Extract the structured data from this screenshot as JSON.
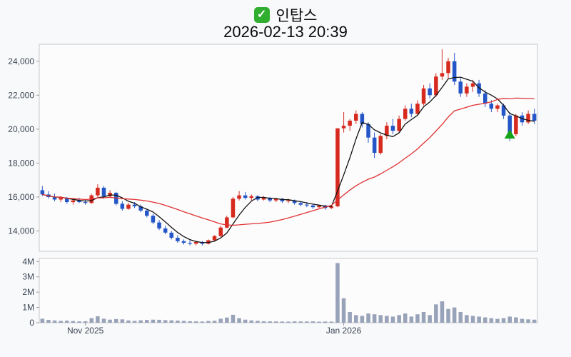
{
  "header": {
    "title": "인탑스",
    "datetime": "2026-02-13 20:39",
    "check_glyph": "✓"
  },
  "chart_data": {
    "type": "candlestick",
    "title": "인탑스",
    "subtitle": "2026-02-13 20:39",
    "price_axis": {
      "min": 12800,
      "max": 25000,
      "ticks": [
        {
          "value": 14000,
          "label": "14,000"
        },
        {
          "value": 16000,
          "label": "16,000"
        },
        {
          "value": 18000,
          "label": "18,000"
        },
        {
          "value": 20000,
          "label": "20,000"
        },
        {
          "value": 22000,
          "label": "22,000"
        },
        {
          "value": 24000,
          "label": "24,000"
        }
      ]
    },
    "volume_axis": {
      "max": 4200000,
      "ticks": [
        {
          "value": 0,
          "label": "0"
        },
        {
          "value": 1000000,
          "label": "1M"
        },
        {
          "value": 2000000,
          "label": "2M"
        },
        {
          "value": 3000000,
          "label": "3M"
        },
        {
          "value": 4000000,
          "label": "4M"
        }
      ]
    },
    "x_ticks": [
      {
        "index": 7,
        "label": "Nov 2025"
      },
      {
        "index": 49,
        "label": "Jan 2026"
      }
    ],
    "colors": {
      "up": "#d62a1f",
      "down": "#2456c8",
      "volume": "#98a2b8",
      "ma_short": "#111111",
      "ma_long": "#e03131",
      "marker": "#17a317",
      "axis_text": "#3c4656",
      "panel_border": "#c9c9c9",
      "background": "#f8f9fa"
    },
    "overlays": [
      {
        "name": "ma-short",
        "period": 5
      },
      {
        "name": "ma-long",
        "period": 20
      }
    ],
    "marker": {
      "index": 76,
      "price": 19650,
      "shape": "triangle-up"
    },
    "candles": [
      [
        16400,
        16650,
        16050,
        16150,
        260000
      ],
      [
        16150,
        16350,
        15900,
        16000,
        180000
      ],
      [
        16000,
        16200,
        15750,
        15850,
        150000
      ],
      [
        15850,
        16050,
        15700,
        15950,
        120000
      ],
      [
        15950,
        16000,
        15600,
        15700,
        140000
      ],
      [
        15700,
        15900,
        15550,
        15800,
        110000
      ],
      [
        15800,
        15950,
        15650,
        15700,
        90000
      ],
      [
        15700,
        15850,
        15550,
        15650,
        100000
      ],
      [
        15650,
        16200,
        15600,
        16100,
        300000
      ],
      [
        16100,
        16750,
        16000,
        16550,
        420000
      ],
      [
        16550,
        16650,
        15900,
        16050,
        260000
      ],
      [
        16050,
        16400,
        15950,
        16250,
        200000
      ],
      [
        16250,
        16300,
        15500,
        15600,
        240000
      ],
      [
        15600,
        15750,
        15200,
        15300,
        220000
      ],
      [
        15300,
        15650,
        15250,
        15550,
        150000
      ],
      [
        15550,
        15700,
        15350,
        15450,
        120000
      ],
      [
        15450,
        15550,
        15100,
        15200,
        160000
      ],
      [
        15200,
        15300,
        14800,
        14900,
        180000
      ],
      [
        14900,
        15000,
        14400,
        14500,
        200000
      ],
      [
        14500,
        14650,
        14050,
        14150,
        190000
      ],
      [
        14150,
        14300,
        13800,
        13900,
        170000
      ],
      [
        13900,
        14000,
        13500,
        13600,
        160000
      ],
      [
        13600,
        13750,
        13300,
        13400,
        140000
      ],
      [
        13400,
        13500,
        13200,
        13300,
        120000
      ],
      [
        13300,
        13450,
        13150,
        13250,
        100000
      ],
      [
        13250,
        13400,
        13150,
        13350,
        90000
      ],
      [
        13350,
        13400,
        13150,
        13250,
        80000
      ],
      [
        13250,
        13500,
        13200,
        13450,
        110000
      ],
      [
        13450,
        13750,
        13400,
        13700,
        130000
      ],
      [
        13700,
        14300,
        13650,
        14200,
        260000
      ],
      [
        14200,
        14900,
        14150,
        14800,
        340000
      ],
      [
        14800,
        16000,
        14750,
        15900,
        520000
      ],
      [
        15900,
        16350,
        15800,
        16100,
        300000
      ],
      [
        16100,
        16300,
        15850,
        15950,
        200000
      ],
      [
        15950,
        16150,
        15800,
        16050,
        150000
      ],
      [
        16050,
        16100,
        15750,
        15850,
        120000
      ],
      [
        15850,
        16050,
        15800,
        15950,
        100000
      ],
      [
        15950,
        16000,
        15700,
        15800,
        90000
      ],
      [
        15800,
        15950,
        15700,
        15900,
        85000
      ],
      [
        15900,
        15950,
        15650,
        15750,
        80000
      ],
      [
        15750,
        15900,
        15650,
        15800,
        75000
      ],
      [
        15800,
        15850,
        15550,
        15650,
        90000
      ],
      [
        15650,
        15750,
        15450,
        15550,
        85000
      ],
      [
        15550,
        15700,
        15400,
        15500,
        80000
      ],
      [
        15500,
        15600,
        15300,
        15400,
        90000
      ],
      [
        15400,
        15550,
        15350,
        15500,
        70000
      ],
      [
        15500,
        15550,
        15250,
        15350,
        80000
      ],
      [
        15350,
        15500,
        15300,
        15450,
        75000
      ],
      [
        15450,
        20050,
        15400,
        20050,
        3900000
      ],
      [
        20050,
        21000,
        19800,
        20200,
        1600000
      ],
      [
        20200,
        20600,
        19900,
        20500,
        700000
      ],
      [
        20500,
        21100,
        20300,
        20900,
        500000
      ],
      [
        20900,
        21000,
        20100,
        20300,
        450000
      ],
      [
        20300,
        20400,
        19200,
        19500,
        600000
      ],
      [
        19500,
        19800,
        18300,
        18600,
        550000
      ],
      [
        18600,
        19700,
        18500,
        19600,
        500000
      ],
      [
        19600,
        20400,
        19400,
        20200,
        450000
      ],
      [
        20200,
        20600,
        19700,
        19900,
        400000
      ],
      [
        19900,
        20800,
        19800,
        20600,
        500000
      ],
      [
        20600,
        21400,
        20500,
        21200,
        600000
      ],
      [
        21200,
        21500,
        20700,
        20900,
        400000
      ],
      [
        20900,
        21700,
        20800,
        21500,
        550000
      ],
      [
        21500,
        22600,
        21400,
        22400,
        700000
      ],
      [
        22400,
        22700,
        21800,
        22000,
        500000
      ],
      [
        22000,
        23300,
        21900,
        23100,
        1200000
      ],
      [
        23100,
        24700,
        22900,
        23300,
        1400000
      ],
      [
        23300,
        24200,
        23000,
        24000,
        900000
      ],
      [
        24000,
        24500,
        22600,
        22800,
        1000000
      ],
      [
        22800,
        23000,
        21900,
        22100,
        700000
      ],
      [
        22100,
        22700,
        21900,
        22500,
        500000
      ],
      [
        22500,
        22900,
        22200,
        22700,
        450000
      ],
      [
        22700,
        22900,
        21900,
        22100,
        400000
      ],
      [
        22100,
        22300,
        21300,
        21500,
        350000
      ],
      [
        21500,
        21700,
        21000,
        21200,
        300000
      ],
      [
        21200,
        21500,
        21000,
        21400,
        250000
      ],
      [
        21400,
        21500,
        20600,
        20800,
        300000
      ],
      [
        20800,
        21000,
        19300,
        19700,
        400000
      ],
      [
        19700,
        20900,
        19600,
        20800,
        350000
      ],
      [
        20800,
        21000,
        20200,
        20400,
        250000
      ],
      [
        20400,
        21100,
        20300,
        20900,
        220000
      ],
      [
        20900,
        21200,
        20300,
        20500,
        200000
      ]
    ]
  }
}
